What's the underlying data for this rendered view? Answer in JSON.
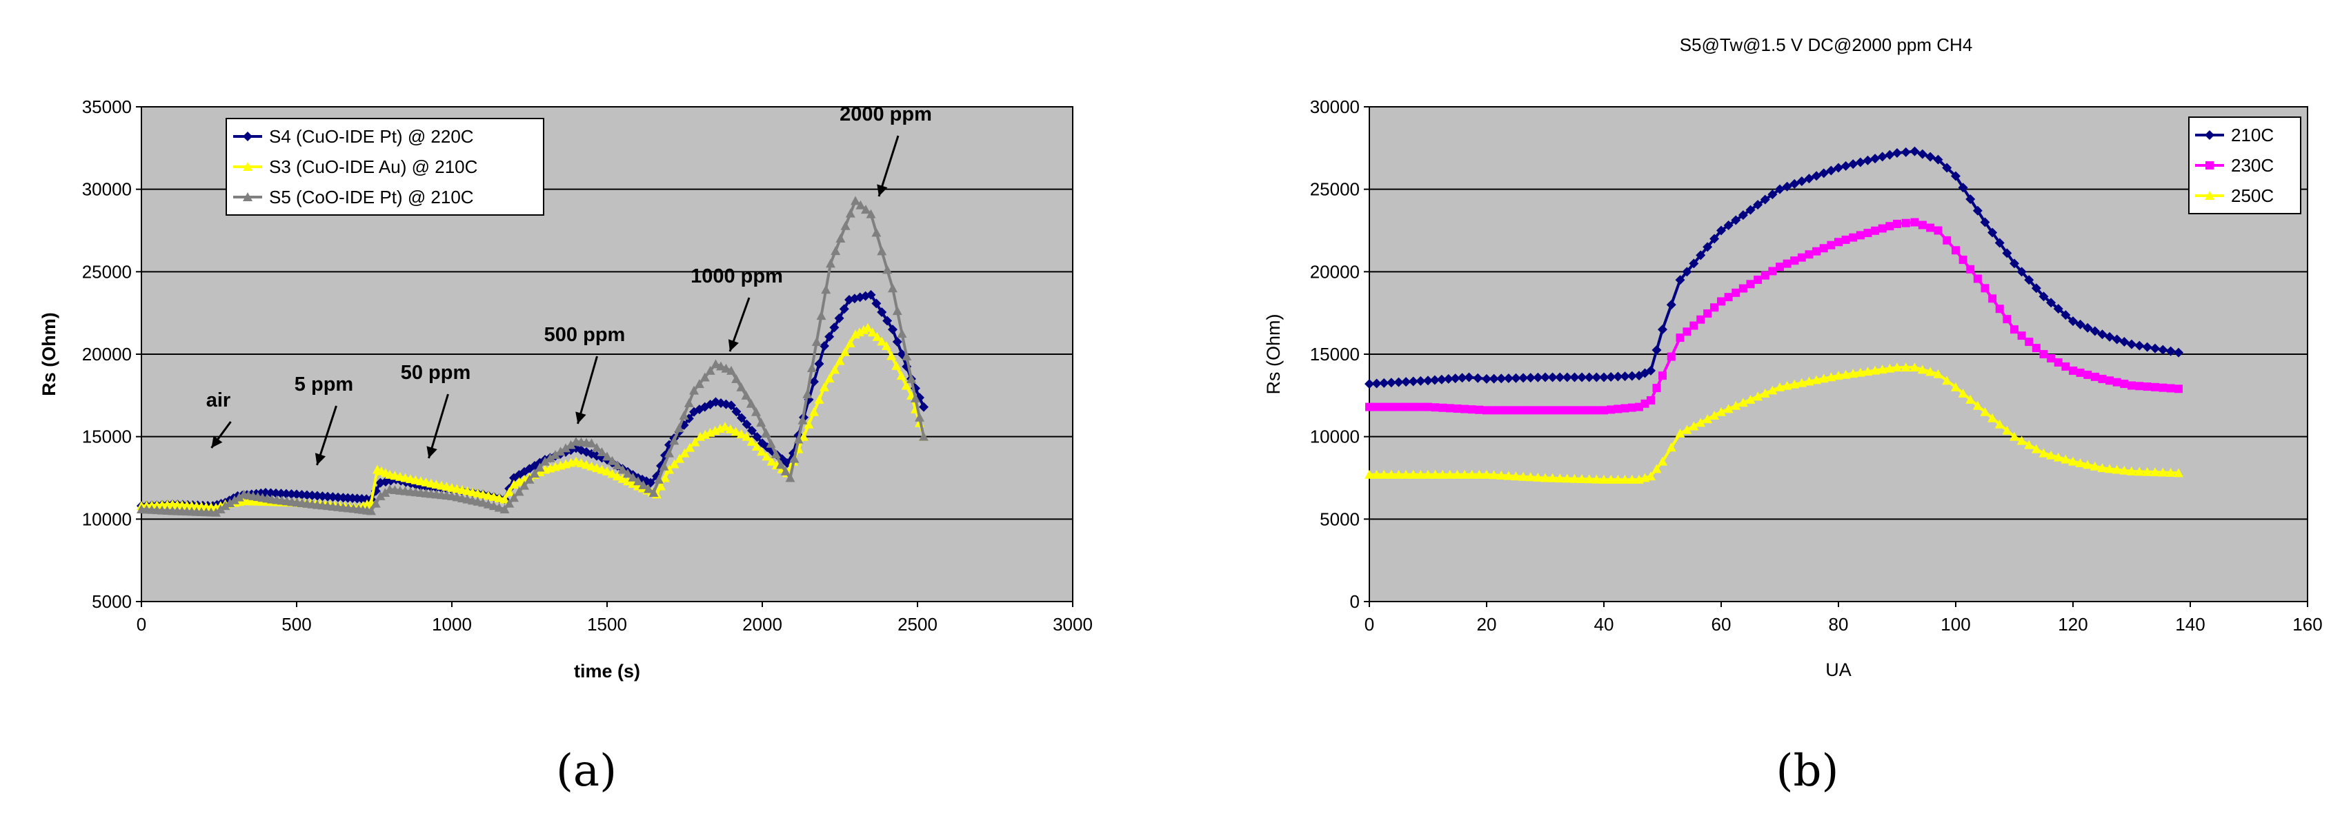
{
  "panel_labels": [
    "(a)",
    "(b)"
  ],
  "chart_data": [
    {
      "type": "line",
      "title": "",
      "xlabel": "time (s)",
      "ylabel": "Rs (Ohm)",
      "xlim": [
        0,
        3000
      ],
      "ylim": [
        5000,
        35000
      ],
      "xticks": [
        0,
        500,
        1000,
        1500,
        2000,
        2500,
        3000
      ],
      "yticks": [
        5000,
        10000,
        15000,
        20000,
        25000,
        30000,
        35000
      ],
      "legend_position": "top-left",
      "series": [
        {
          "name": "S4 (CuO-IDE Pt) @ 220C",
          "color": "#000080",
          "marker": "diamond",
          "points": [
            [
              0,
              10800
            ],
            [
              100,
              10900
            ],
            [
              230,
              10800
            ],
            [
              270,
              11000
            ],
            [
              310,
              11400
            ],
            [
              400,
              11600
            ],
            [
              500,
              11500
            ],
            [
              650,
              11300
            ],
            [
              740,
              11200
            ],
            [
              770,
              12200
            ],
            [
              820,
              12400
            ],
            [
              900,
              12000
            ],
            [
              1000,
              11800
            ],
            [
              1100,
              11500
            ],
            [
              1170,
              11200
            ],
            [
              1200,
              12500
            ],
            [
              1300,
              13600
            ],
            [
              1400,
              14300
            ],
            [
              1500,
              13600
            ],
            [
              1600,
              12500
            ],
            [
              1640,
              12200
            ],
            [
              1660,
              12600
            ],
            [
              1700,
              14500
            ],
            [
              1780,
              16500
            ],
            [
              1850,
              17100
            ],
            [
              1900,
              16900
            ],
            [
              2000,
              14600
            ],
            [
              2080,
              13400
            ],
            [
              2100,
              14000
            ],
            [
              2200,
              20500
            ],
            [
              2280,
              23300
            ],
            [
              2350,
              23600
            ],
            [
              2420,
              21500
            ],
            [
              2480,
              18500
            ],
            [
              2520,
              16800
            ]
          ]
        },
        {
          "name": "S3 (CuO-IDE Au) @ 210C",
          "color": "#ffff00",
          "marker": "triangle",
          "points": [
            [
              0,
              10800
            ],
            [
              100,
              10900
            ],
            [
              240,
              10700
            ],
            [
              270,
              10900
            ],
            [
              330,
              11100
            ],
            [
              500,
              11000
            ],
            [
              700,
              10700
            ],
            [
              740,
              11000
            ],
            [
              760,
              13000
            ],
            [
              800,
              12700
            ],
            [
              900,
              12300
            ],
            [
              1000,
              11900
            ],
            [
              1100,
              11500
            ],
            [
              1170,
              11200
            ],
            [
              1200,
              12100
            ],
            [
              1300,
              13000
            ],
            [
              1400,
              13500
            ],
            [
              1500,
              12900
            ],
            [
              1600,
              12000
            ],
            [
              1660,
              11500
            ],
            [
              1700,
              13000
            ],
            [
              1800,
              15000
            ],
            [
              1880,
              15600
            ],
            [
              1950,
              15000
            ],
            [
              2030,
              13500
            ],
            [
              2080,
              12800
            ],
            [
              2100,
              13500
            ],
            [
              2200,
              18000
            ],
            [
              2300,
              21200
            ],
            [
              2340,
              21600
            ],
            [
              2400,
              20500
            ],
            [
              2480,
              17500
            ],
            [
              2520,
              15000
            ]
          ]
        },
        {
          "name": "S5 (CoO-IDE Pt) @ 210C",
          "color": "#808080",
          "marker": "triangle",
          "points": [
            [
              0,
              10600
            ],
            [
              100,
              10500
            ],
            [
              240,
              10400
            ],
            [
              270,
              10800
            ],
            [
              330,
              11500
            ],
            [
              420,
              11200
            ],
            [
              550,
              10900
            ],
            [
              700,
              10600
            ],
            [
              740,
              10500
            ],
            [
              770,
              11400
            ],
            [
              800,
              11800
            ],
            [
              900,
              11600
            ],
            [
              1000,
              11400
            ],
            [
              1100,
              11000
            ],
            [
              1170,
              10600
            ],
            [
              1200,
              11300
            ],
            [
              1300,
              13500
            ],
            [
              1400,
              14700
            ],
            [
              1450,
              14600
            ],
            [
              1550,
              13000
            ],
            [
              1650,
              11600
            ],
            [
              1700,
              14000
            ],
            [
              1780,
              17800
            ],
            [
              1850,
              19400
            ],
            [
              1900,
              19000
            ],
            [
              1980,
              16500
            ],
            [
              2060,
              13300
            ],
            [
              2090,
              12500
            ],
            [
              2130,
              16000
            ],
            [
              2220,
              25500
            ],
            [
              2300,
              29300
            ],
            [
              2350,
              28500
            ],
            [
              2420,
              24000
            ],
            [
              2480,
              18500
            ],
            [
              2520,
              15000
            ]
          ]
        }
      ],
      "annotations": [
        {
          "text": "air",
          "x": 230
        },
        {
          "text": "5 ppm",
          "x": 570
        },
        {
          "text": "50 ppm",
          "x": 930
        },
        {
          "text": "500 ppm",
          "x": 1410
        },
        {
          "text": "1000 ppm",
          "x": 1900
        },
        {
          "text": "2000 ppm",
          "x": 2380
        }
      ]
    },
    {
      "type": "line",
      "title": "S5@Tw@1.5 V DC@2000 ppm CH4",
      "xlabel": "UA",
      "ylabel": "Rs (Ohm)",
      "xlim": [
        0,
        160
      ],
      "ylim": [
        0,
        30000
      ],
      "xticks": [
        0,
        20,
        40,
        60,
        80,
        100,
        120,
        140,
        160
      ],
      "yticks": [
        0,
        5000,
        10000,
        15000,
        20000,
        25000,
        30000
      ],
      "legend_position": "top-right",
      "series": [
        {
          "name": "210C",
          "color": "#000080",
          "marker": "diamond",
          "points": [
            [
              0,
              13200
            ],
            [
              10,
              13400
            ],
            [
              17,
              13600
            ],
            [
              20,
              13500
            ],
            [
              30,
              13600
            ],
            [
              40,
              13600
            ],
            [
              46,
              13700
            ],
            [
              48,
              14000
            ],
            [
              50,
              16500
            ],
            [
              53,
              19500
            ],
            [
              60,
              22500
            ],
            [
              70,
              25000
            ],
            [
              80,
              26300
            ],
            [
              90,
              27200
            ],
            [
              93,
              27300
            ],
            [
              97,
              26800
            ],
            [
              100,
              25800
            ],
            [
              105,
              23000
            ],
            [
              110,
              20500
            ],
            [
              115,
              18500
            ],
            [
              120,
              17000
            ],
            [
              125,
              16200
            ],
            [
              130,
              15600
            ],
            [
              138,
              15100
            ]
          ]
        },
        {
          "name": "230C",
          "color": "#ff00ff",
          "marker": "square",
          "points": [
            [
              0,
              11800
            ],
            [
              10,
              11800
            ],
            [
              20,
              11600
            ],
            [
              30,
              11600
            ],
            [
              40,
              11600
            ],
            [
              46,
              11800
            ],
            [
              48,
              12200
            ],
            [
              50,
              13700
            ],
            [
              53,
              16000
            ],
            [
              60,
              18200
            ],
            [
              70,
              20300
            ],
            [
              80,
              21800
            ],
            [
              90,
              22900
            ],
            [
              93,
              23000
            ],
            [
              97,
              22500
            ],
            [
              100,
              21300
            ],
            [
              105,
              19000
            ],
            [
              110,
              16500
            ],
            [
              115,
              15000
            ],
            [
              120,
              14000
            ],
            [
              125,
              13500
            ],
            [
              130,
              13100
            ],
            [
              138,
              12900
            ]
          ]
        },
        {
          "name": "250C",
          "color": "#ffff00",
          "marker": "triangle",
          "points": [
            [
              0,
              7700
            ],
            [
              10,
              7700
            ],
            [
              20,
              7700
            ],
            [
              30,
              7500
            ],
            [
              40,
              7400
            ],
            [
              46,
              7400
            ],
            [
              48,
              7600
            ],
            [
              50,
              8500
            ],
            [
              53,
              10200
            ],
            [
              60,
              11500
            ],
            [
              70,
              13000
            ],
            [
              80,
              13700
            ],
            [
              90,
              14200
            ],
            [
              93,
              14200
            ],
            [
              97,
              13800
            ],
            [
              100,
              13000
            ],
            [
              105,
              11500
            ],
            [
              110,
              10000
            ],
            [
              115,
              9000
            ],
            [
              120,
              8500
            ],
            [
              125,
              8100
            ],
            [
              130,
              7900
            ],
            [
              138,
              7800
            ]
          ]
        }
      ]
    }
  ]
}
